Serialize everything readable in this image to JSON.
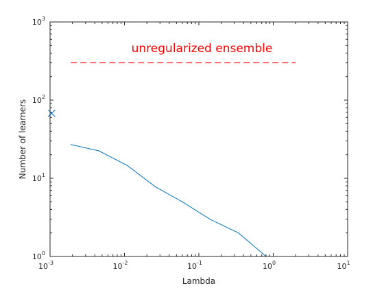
{
  "chart_data": {
    "type": "line",
    "title": "",
    "xlabel": "Lambda",
    "ylabel": "Number of learners",
    "x_scale": "log",
    "y_scale": "log",
    "xlim": [
      0.001,
      10
    ],
    "ylim": [
      1,
      1000
    ],
    "x_ticks": [
      {
        "base": "10",
        "exp": "-3"
      },
      {
        "base": "10",
        "exp": "-2"
      },
      {
        "base": "10",
        "exp": "-1"
      },
      {
        "base": "10",
        "exp": "0"
      },
      {
        "base": "10",
        "exp": "1"
      }
    ],
    "y_ticks": [
      {
        "base": "10",
        "exp": "0"
      },
      {
        "base": "10",
        "exp": "1"
      },
      {
        "base": "10",
        "exp": "2"
      },
      {
        "base": "10",
        "exp": "3"
      }
    ],
    "grid": false,
    "colors": {
      "series": "#0072BD",
      "reference": "#FF0000",
      "axes": "#262626"
    },
    "series": [
      {
        "x": [
          0.0019,
          0.0045,
          0.011,
          0.026,
          0.062,
          0.14,
          0.34,
          0.8
        ],
        "y": [
          27,
          22.5,
          14.5,
          7.8,
          4.9,
          3.0,
          2.0,
          1.0
        ]
      }
    ],
    "markers": [
      {
        "x": 0.00105,
        "y": 68,
        "symbol": "x"
      }
    ],
    "reference_line": {
      "y": 300,
      "x_start": 0.0019,
      "x_end": 2.0,
      "style": "dashed",
      "label": "unregularized ensemble",
      "label_x": 0.11,
      "label_y": 410
    }
  }
}
